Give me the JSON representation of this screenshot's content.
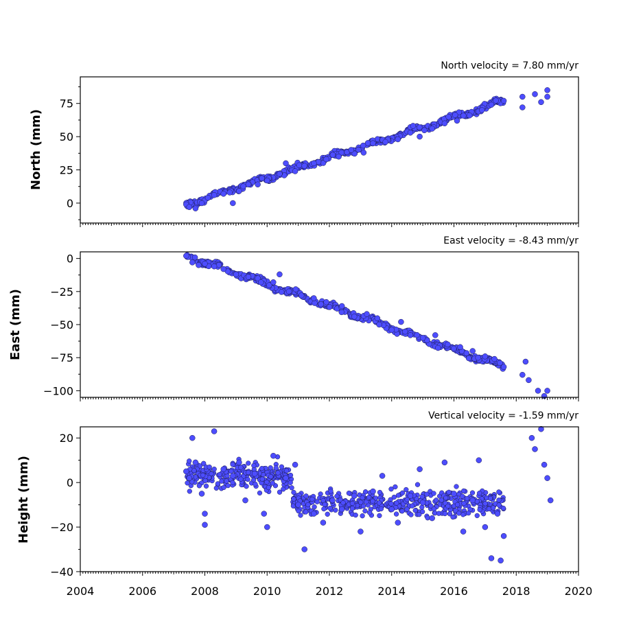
{
  "chart_data": [
    {
      "type": "scatter",
      "ylabel": "North (mm)",
      "velocity_label": "North velocity = 7.80 mm/yr",
      "xlim": [
        2004,
        2020
      ],
      "ylim": [
        -15,
        95
      ],
      "y_ticks": [
        0,
        25,
        50,
        75
      ],
      "x_tick_labels": [],
      "color": "#4d4dff",
      "trend": {
        "start": [
          2007.4,
          -1
        ],
        "end": [
          2017.6,
          77
        ]
      },
      "points": [
        [
          2007.4,
          -1
        ],
        [
          2007.5,
          -3
        ],
        [
          2007.7,
          -4
        ],
        [
          2007.9,
          0
        ],
        [
          2008.1,
          4
        ],
        [
          2008.3,
          6
        ],
        [
          2008.6,
          7
        ],
        [
          2008.8,
          8
        ],
        [
          2008.9,
          0
        ],
        [
          2009.1,
          9
        ],
        [
          2009.4,
          14
        ],
        [
          2009.7,
          14
        ],
        [
          2010.0,
          17
        ],
        [
          2010.4,
          22
        ],
        [
          2010.6,
          30
        ],
        [
          2010.9,
          24
        ],
        [
          2011.2,
          28
        ],
        [
          2011.5,
          30
        ],
        [
          2011.9,
          33
        ],
        [
          2012.3,
          35
        ],
        [
          2012.7,
          40
        ],
        [
          2013.1,
          38
        ],
        [
          2013.4,
          45
        ],
        [
          2013.8,
          46
        ],
        [
          2014.2,
          48
        ],
        [
          2014.6,
          53
        ],
        [
          2014.9,
          50
        ],
        [
          2015.3,
          56
        ],
        [
          2015.7,
          60
        ],
        [
          2016.1,
          62
        ],
        [
          2016.5,
          66
        ],
        [
          2016.9,
          70
        ],
        [
          2017.2,
          74
        ],
        [
          2017.6,
          77
        ],
        [
          2018.2,
          80
        ],
        [
          2018.2,
          72
        ],
        [
          2018.6,
          82
        ],
        [
          2018.8,
          76
        ],
        [
          2019.0,
          80
        ],
        [
          2019.0,
          85
        ]
      ]
    },
    {
      "type": "scatter",
      "ylabel": "East (mm)",
      "velocity_label": "East velocity = -8.43 mm/yr",
      "xlim": [
        2004,
        2020
      ],
      "ylim": [
        -105,
        5
      ],
      "y_ticks": [
        0,
        -25,
        -50,
        -75,
        -100
      ],
      "x_tick_labels": [],
      "color": "#4d4dff",
      "trend": {
        "start": [
          2007.4,
          2
        ],
        "end": [
          2017.6,
          -82
        ]
      },
      "points": [
        [
          2007.4,
          2
        ],
        [
          2007.6,
          -3
        ],
        [
          2007.8,
          -5
        ],
        [
          2008.0,
          -4
        ],
        [
          2008.3,
          -6
        ],
        [
          2008.6,
          -8
        ],
        [
          2009.0,
          -12
        ],
        [
          2009.4,
          -14
        ],
        [
          2009.8,
          -18
        ],
        [
          2010.2,
          -18
        ],
        [
          2010.4,
          -12
        ],
        [
          2010.7,
          -25
        ],
        [
          2011.1,
          -28
        ],
        [
          2011.5,
          -30
        ],
        [
          2011.9,
          -33
        ],
        [
          2012.4,
          -36
        ],
        [
          2012.8,
          -44
        ],
        [
          2013.2,
          -42
        ],
        [
          2013.6,
          -50
        ],
        [
          2014.0,
          -54
        ],
        [
          2014.3,
          -48
        ],
        [
          2014.6,
          -58
        ],
        [
          2015.0,
          -60
        ],
        [
          2015.4,
          -58
        ],
        [
          2015.8,
          -65
        ],
        [
          2016.2,
          -67
        ],
        [
          2016.6,
          -70
        ],
        [
          2017.0,
          -74
        ],
        [
          2017.3,
          -76
        ],
        [
          2017.6,
          -82
        ],
        [
          2018.2,
          -88
        ],
        [
          2018.3,
          -78
        ],
        [
          2018.4,
          -92
        ],
        [
          2018.7,
          -100
        ],
        [
          2018.9,
          -104
        ],
        [
          2019.0,
          -100
        ]
      ]
    },
    {
      "type": "scatter",
      "ylabel": "Height (mm)",
      "velocity_label": "Vertical velocity = -1.59 mm/yr",
      "xlim": [
        2004,
        2020
      ],
      "ylim": [
        -40,
        25
      ],
      "y_ticks": [
        20,
        0,
        -20,
        -40
      ],
      "x_tick_labels": [
        "2004",
        "2006",
        "2008",
        "2010",
        "2012",
        "2014",
        "2016",
        "2018",
        "2020"
      ],
      "color": "#4d4dff",
      "points": [
        [
          2007.4,
          5
        ],
        [
          2007.5,
          2
        ],
        [
          2007.6,
          20
        ],
        [
          2007.7,
          9
        ],
        [
          2007.9,
          -5
        ],
        [
          2008.0,
          -14
        ],
        [
          2008.0,
          -19
        ],
        [
          2008.3,
          23
        ],
        [
          2008.6,
          6
        ],
        [
          2008.9,
          3
        ],
        [
          2009.1,
          9
        ],
        [
          2009.3,
          -8
        ],
        [
          2009.6,
          4
        ],
        [
          2009.9,
          -14
        ],
        [
          2010.0,
          -20
        ],
        [
          2010.2,
          12
        ],
        [
          2010.6,
          2
        ],
        [
          2010.9,
          8
        ],
        [
          2011.0,
          -10
        ],
        [
          2011.2,
          -30
        ],
        [
          2011.5,
          -14
        ],
        [
          2011.8,
          -18
        ],
        [
          2012.1,
          -8
        ],
        [
          2012.4,
          -12
        ],
        [
          2012.8,
          -6
        ],
        [
          2013.0,
          -22
        ],
        [
          2013.4,
          -4
        ],
        [
          2013.7,
          3
        ],
        [
          2014.0,
          -12
        ],
        [
          2014.2,
          -18
        ],
        [
          2014.6,
          -6
        ],
        [
          2014.9,
          6
        ],
        [
          2015.0,
          -9
        ],
        [
          2015.3,
          -16
        ],
        [
          2015.7,
          9
        ],
        [
          2016.0,
          -5
        ],
        [
          2016.3,
          -22
        ],
        [
          2016.6,
          -8
        ],
        [
          2016.8,
          10
        ],
        [
          2017.0,
          -20
        ],
        [
          2017.2,
          -34
        ],
        [
          2017.4,
          -14
        ],
        [
          2017.6,
          -24
        ],
        [
          2017.5,
          -35
        ],
        [
          2018.5,
          20
        ],
        [
          2018.6,
          15
        ],
        [
          2018.8,
          24
        ],
        [
          2018.9,
          8
        ],
        [
          2019.0,
          2
        ],
        [
          2019.1,
          -8
        ]
      ],
      "scatter_band": {
        "x": [
          2007.4,
          2017.6
        ],
        "y": [
          -15,
          10
        ]
      }
    }
  ]
}
